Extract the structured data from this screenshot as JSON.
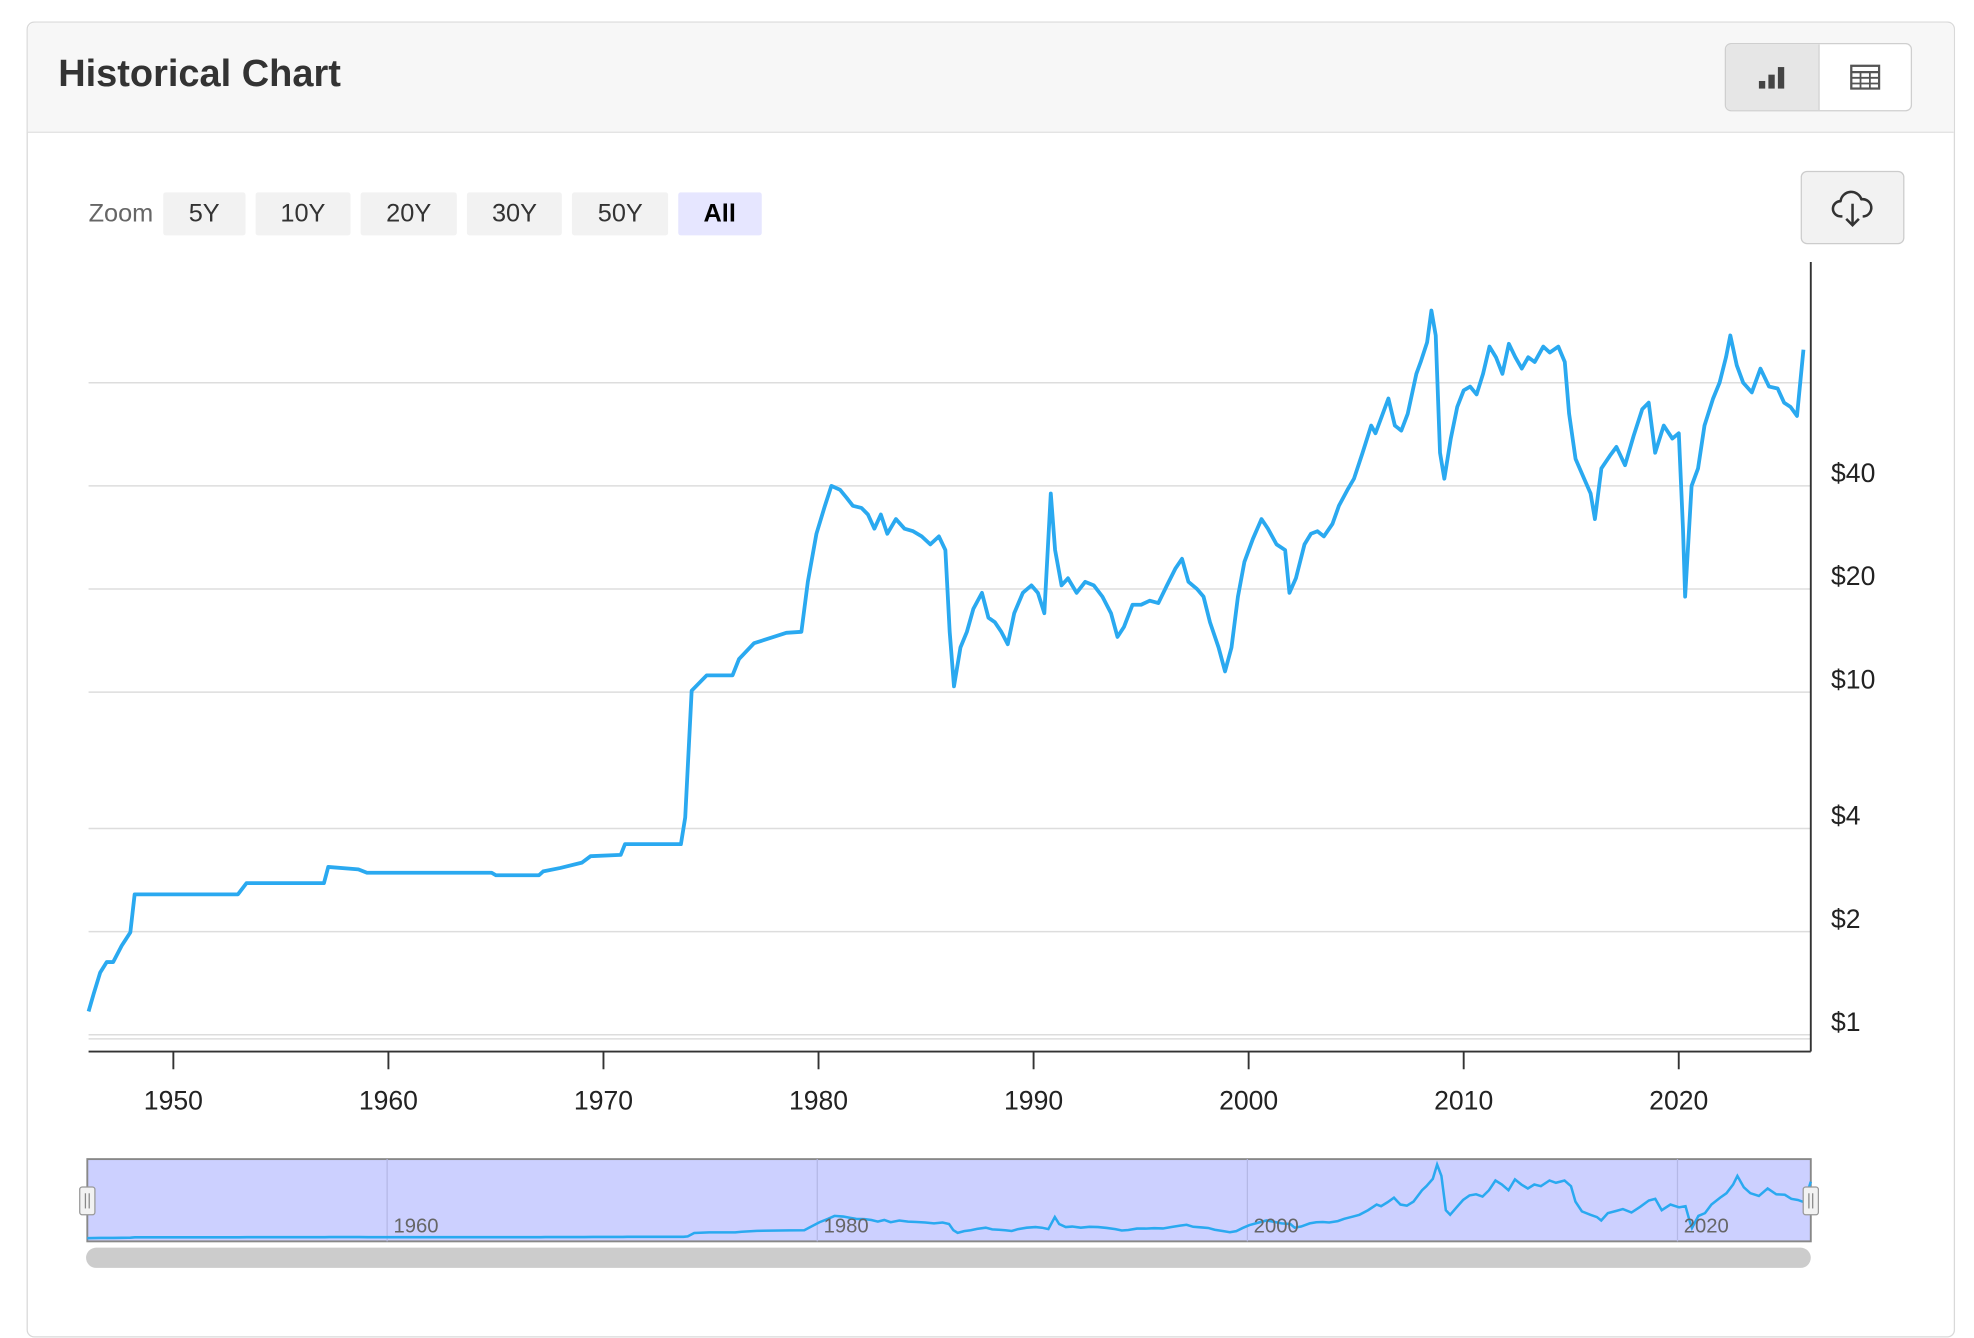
{
  "header": {
    "title": "Historical Chart"
  },
  "view_toggle": {
    "chart_icon": "bar-chart-icon",
    "table_icon": "table-icon",
    "active": "chart"
  },
  "zoom": {
    "label": "Zoom",
    "options": [
      "5Y",
      "10Y",
      "20Y",
      "30Y",
      "50Y",
      "All"
    ],
    "selected": "All"
  },
  "download": {
    "icon": "cloud-download-icon"
  },
  "colors": {
    "line": "#2aa9f0",
    "navigator_fill": "#ccd0ff",
    "grid": "#dddddd"
  },
  "chart_data": {
    "type": "line",
    "y_scale": "log",
    "y_ticks": [
      1,
      2,
      4,
      10,
      20,
      40
    ],
    "y_tick_labels": [
      "$1",
      "$2",
      "$4",
      "$10",
      "$20",
      "$40"
    ],
    "x_ticks": [
      1950,
      1960,
      1970,
      1980,
      1990,
      2000,
      2010,
      2020
    ],
    "x_tick_labels": [
      "1950",
      "1960",
      "1970",
      "1980",
      "1990",
      "2000",
      "2010",
      "2020"
    ],
    "xlim": [
      1946,
      2025.8
    ],
    "ylim": [
      0.9,
      135
    ],
    "grid": "horizontal",
    "legend": "none",
    "navigator_labels": [
      "1960",
      "1980",
      "2000",
      "2020"
    ],
    "series": [
      {
        "points": [
          [
            1946.0,
            1.17
          ],
          [
            1946.3,
            1.32
          ],
          [
            1946.6,
            1.52
          ],
          [
            1946.9,
            1.63
          ],
          [
            1947.2,
            1.63
          ],
          [
            1947.6,
            1.82
          ],
          [
            1948.0,
            1.99
          ],
          [
            1948.2,
            2.57
          ],
          [
            1953.0,
            2.57
          ],
          [
            1953.4,
            2.77
          ],
          [
            1957.0,
            2.77
          ],
          [
            1957.2,
            3.09
          ],
          [
            1958.6,
            3.04
          ],
          [
            1959.0,
            2.97
          ],
          [
            1964.8,
            2.97
          ],
          [
            1965.0,
            2.92
          ],
          [
            1967.0,
            2.92
          ],
          [
            1967.2,
            3.0
          ],
          [
            1968.0,
            3.07
          ],
          [
            1969.0,
            3.18
          ],
          [
            1969.4,
            3.32
          ],
          [
            1970.8,
            3.35
          ],
          [
            1971.0,
            3.6
          ],
          [
            1973.6,
            3.6
          ],
          [
            1973.8,
            4.31
          ],
          [
            1974.1,
            10.1
          ],
          [
            1974.8,
            11.2
          ],
          [
            1976.0,
            11.2
          ],
          [
            1976.3,
            12.5
          ],
          [
            1977.0,
            13.9
          ],
          [
            1978.5,
            14.9
          ],
          [
            1979.2,
            15.0
          ],
          [
            1979.5,
            21
          ],
          [
            1979.9,
            29
          ],
          [
            1980.3,
            35
          ],
          [
            1980.6,
            40
          ],
          [
            1981.0,
            39
          ],
          [
            1981.3,
            37
          ],
          [
            1981.6,
            35
          ],
          [
            1982.0,
            34.5
          ],
          [
            1982.3,
            33
          ],
          [
            1982.6,
            30
          ],
          [
            1982.9,
            33
          ],
          [
            1983.2,
            29
          ],
          [
            1983.6,
            32
          ],
          [
            1984.0,
            30
          ],
          [
            1984.4,
            29.5
          ],
          [
            1984.8,
            28.5
          ],
          [
            1985.2,
            27
          ],
          [
            1985.6,
            28.5
          ],
          [
            1985.9,
            26
          ],
          [
            1986.1,
            15
          ],
          [
            1986.3,
            10.4
          ],
          [
            1986.6,
            13.5
          ],
          [
            1986.9,
            15
          ],
          [
            1987.2,
            17.5
          ],
          [
            1987.6,
            19.5
          ],
          [
            1987.9,
            16.5
          ],
          [
            1988.2,
            16
          ],
          [
            1988.5,
            15
          ],
          [
            1988.8,
            13.8
          ],
          [
            1989.1,
            17
          ],
          [
            1989.5,
            19.5
          ],
          [
            1989.9,
            20.5
          ],
          [
            1990.2,
            19.5
          ],
          [
            1990.5,
            17
          ],
          [
            1990.8,
            38
          ],
          [
            1991.0,
            26
          ],
          [
            1991.3,
            20.5
          ],
          [
            1991.6,
            21.5
          ],
          [
            1992.0,
            19.5
          ],
          [
            1992.4,
            21
          ],
          [
            1992.8,
            20.5
          ],
          [
            1993.2,
            19
          ],
          [
            1993.6,
            17
          ],
          [
            1993.9,
            14.5
          ],
          [
            1994.2,
            15.5
          ],
          [
            1994.6,
            18
          ],
          [
            1995.0,
            18
          ],
          [
            1995.4,
            18.5
          ],
          [
            1995.8,
            18.2
          ],
          [
            1996.2,
            20.5
          ],
          [
            1996.6,
            23
          ],
          [
            1996.9,
            24.5
          ],
          [
            1997.2,
            21
          ],
          [
            1997.6,
            20
          ],
          [
            1997.9,
            19
          ],
          [
            1998.2,
            16
          ],
          [
            1998.6,
            13.5
          ],
          [
            1998.9,
            11.5
          ],
          [
            1999.2,
            13.5
          ],
          [
            1999.5,
            19
          ],
          [
            1999.8,
            24
          ],
          [
            2000.2,
            28
          ],
          [
            2000.6,
            32
          ],
          [
            2000.9,
            30
          ],
          [
            2001.3,
            27
          ],
          [
            2001.7,
            26
          ],
          [
            2001.9,
            19.5
          ],
          [
            2002.2,
            21.5
          ],
          [
            2002.6,
            27
          ],
          [
            2002.9,
            29
          ],
          [
            2003.2,
            29.5
          ],
          [
            2003.5,
            28.5
          ],
          [
            2003.9,
            31
          ],
          [
            2004.2,
            35
          ],
          [
            2004.6,
            39
          ],
          [
            2004.9,
            42
          ],
          [
            2005.3,
            50
          ],
          [
            2005.7,
            60
          ],
          [
            2005.9,
            57
          ],
          [
            2006.2,
            64
          ],
          [
            2006.5,
            72
          ],
          [
            2006.8,
            60
          ],
          [
            2007.1,
            58
          ],
          [
            2007.4,
            65
          ],
          [
            2007.8,
            85
          ],
          [
            2008.0,
            92
          ],
          [
            2008.3,
            105
          ],
          [
            2008.5,
            130
          ],
          [
            2008.7,
            110
          ],
          [
            2008.9,
            50
          ],
          [
            2009.1,
            42
          ],
          [
            2009.4,
            55
          ],
          [
            2009.7,
            68
          ],
          [
            2010.0,
            76
          ],
          [
            2010.3,
            78
          ],
          [
            2010.6,
            74
          ],
          [
            2010.9,
            85
          ],
          [
            2011.2,
            102
          ],
          [
            2011.5,
            95
          ],
          [
            2011.8,
            85
          ],
          [
            2012.1,
            104
          ],
          [
            2012.4,
            95
          ],
          [
            2012.7,
            88
          ],
          [
            2013.0,
            95
          ],
          [
            2013.3,
            92
          ],
          [
            2013.7,
            102
          ],
          [
            2014.0,
            98
          ],
          [
            2014.4,
            102
          ],
          [
            2014.7,
            92
          ],
          [
            2014.9,
            65
          ],
          [
            2015.2,
            48
          ],
          [
            2015.6,
            42
          ],
          [
            2015.9,
            38
          ],
          [
            2016.1,
            32
          ],
          [
            2016.4,
            45
          ],
          [
            2016.8,
            49
          ],
          [
            2017.1,
            52
          ],
          [
            2017.5,
            46
          ],
          [
            2017.9,
            56
          ],
          [
            2018.3,
            67
          ],
          [
            2018.6,
            70
          ],
          [
            2018.9,
            50
          ],
          [
            2019.3,
            60
          ],
          [
            2019.7,
            55
          ],
          [
            2020.0,
            57
          ],
          [
            2020.2,
            30
          ],
          [
            2020.3,
            19
          ],
          [
            2020.6,
            40
          ],
          [
            2020.9,
            45
          ],
          [
            2021.2,
            60
          ],
          [
            2021.6,
            72
          ],
          [
            2021.9,
            80
          ],
          [
            2022.2,
            95
          ],
          [
            2022.4,
            110
          ],
          [
            2022.7,
            90
          ],
          [
            2023.0,
            80
          ],
          [
            2023.4,
            75
          ],
          [
            2023.8,
            88
          ],
          [
            2024.2,
            78
          ],
          [
            2024.6,
            77
          ],
          [
            2024.9,
            70
          ],
          [
            2025.2,
            68
          ],
          [
            2025.5,
            64
          ],
          [
            2025.8,
            100
          ]
        ]
      }
    ]
  }
}
